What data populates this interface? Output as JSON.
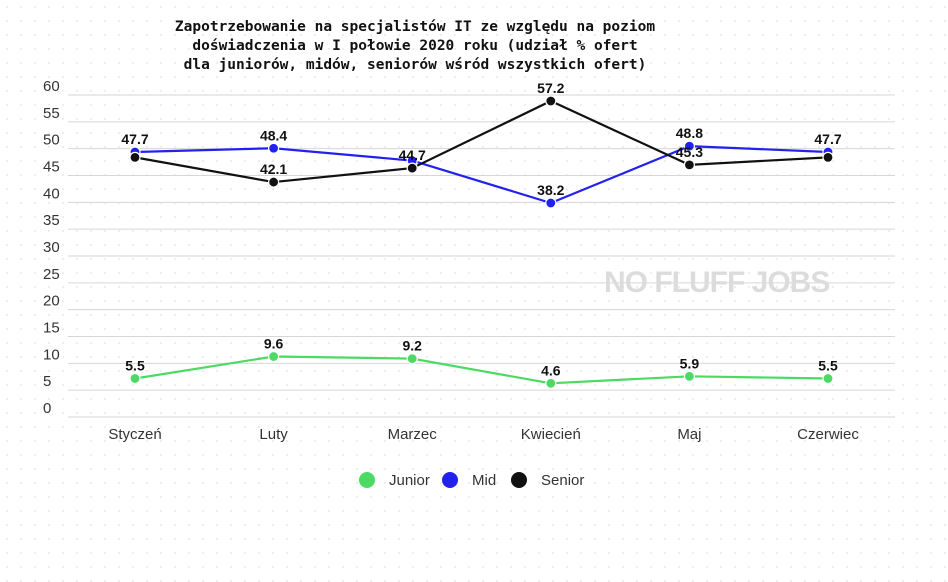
{
  "chart_data": {
    "type": "line",
    "title": "Zapotrzebowanie na specjalistów IT ze względu na poziom\n doświadczenia w I połowie 2020 roku (udział % ofert\n dla juniorów, midów, seniorów wśród wszystkich ofert)",
    "categories": [
      "Styczeń",
      "Luty",
      "Marzec",
      "Kwiecień",
      "Maj",
      "Czerwiec"
    ],
    "ylim": [
      0,
      60
    ],
    "yticks": [
      0,
      5,
      10,
      15,
      20,
      25,
      30,
      35,
      40,
      45,
      50,
      55,
      60
    ],
    "grid": true,
    "legend_position": "bottom",
    "watermark": "NO FLUFF JOBS",
    "series": [
      {
        "name": "Junior",
        "color": "#4cd964",
        "values": [
          5.5,
          9.6,
          9.2,
          4.6,
          5.9,
          5.5
        ],
        "labels": [
          "5.5",
          "9.6",
          "9.2",
          "4.6",
          "5.9",
          "5.5"
        ]
      },
      {
        "name": "Mid",
        "color": "#2222ee",
        "values": [
          47.7,
          48.4,
          46.1,
          38.2,
          48.8,
          47.7
        ],
        "labels": [
          "47.7",
          "48.4",
          "",
          "38.2",
          "48.8",
          "47.7"
        ]
      },
      {
        "name": "Senior",
        "color": "#111111",
        "values": [
          46.7,
          42.1,
          44.7,
          57.2,
          45.3,
          46.7
        ],
        "labels": [
          "",
          "42.1",
          "44.7",
          "57.2",
          "45.3",
          ""
        ]
      }
    ]
  }
}
